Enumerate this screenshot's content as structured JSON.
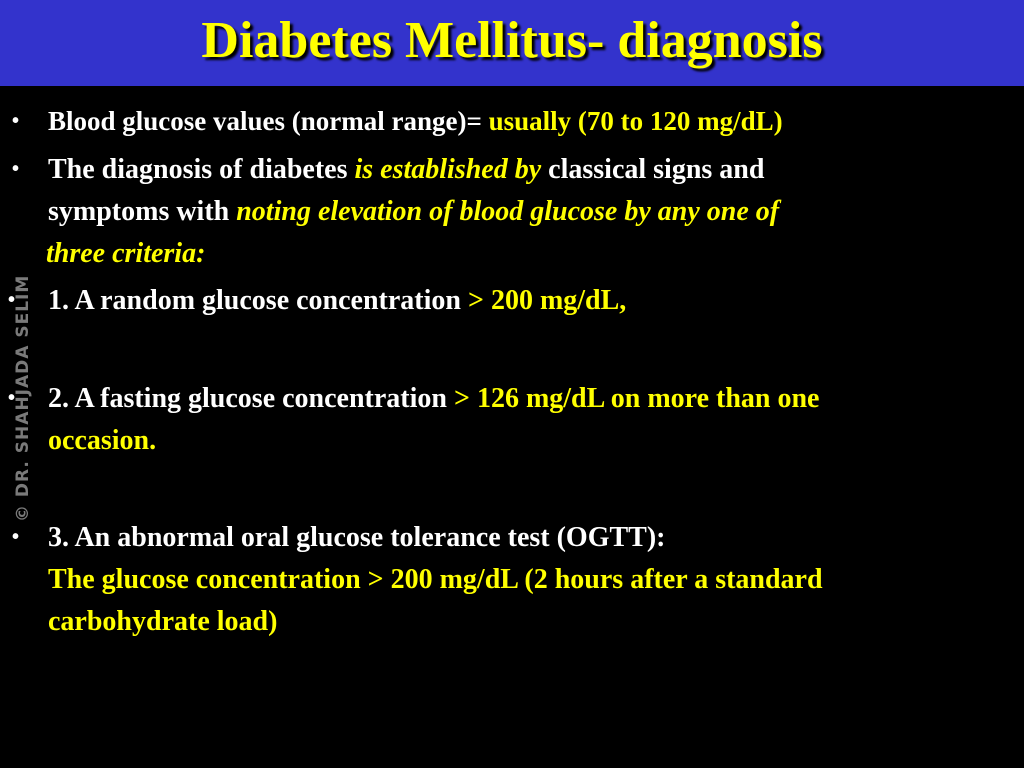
{
  "slide": {
    "title": "Diabetes Mellitus- diagnosis",
    "watermark": "© DR. SHAHJADA SELIM",
    "bullet_symbol": "•",
    "bullets": [
      {
        "a": "Blood glucose values (normal range)=",
        "b": "usually (70 to 120 mg/dL)"
      },
      {
        "a": "The diagnosis of diabetes",
        "b": "is established by",
        "c": "classical signs and",
        "d": "symptoms with",
        "e": "noting elevation of blood glucose by any one of",
        "f": "three criteria:"
      },
      {
        "a": "1.  A random glucose concentration",
        "b": "> 200 mg/dL,"
      },
      {
        "a": "2. A fasting glucose concentration",
        "b": "> 126 mg/dL on more than one",
        "c": "occasion."
      },
      {
        "a": "3. An abnormal oral glucose tolerance test (OGTT):",
        "b": "The glucose concentration",
        "c": "> 200 mg/dL (2 hours after a standard",
        "d": "carbohydrate load)"
      }
    ]
  },
  "colors": {
    "title_bar": "#3333cc",
    "title_text": "#ffff00",
    "body_text": "#ffffff",
    "highlight": "#ffff00",
    "background": "#000000"
  }
}
